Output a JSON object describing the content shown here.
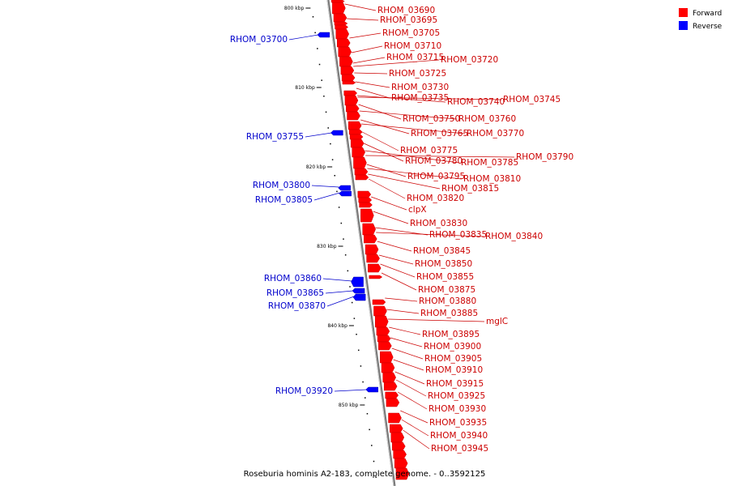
{
  "caption": "Roseburia hominis A2-183, complete genome. - 0..3592125",
  "legend": {
    "forward": {
      "label": "Forward",
      "color": "#ff0000"
    },
    "reverse": {
      "label": "Reverse",
      "color": "#0000ff"
    }
  },
  "ticks": [
    {
      "label": "800 kbp",
      "kbp": 800
    },
    {
      "label": "810 kbp",
      "kbp": 810
    },
    {
      "label": "820 kbp",
      "kbp": 820
    },
    {
      "label": "830 kbp",
      "kbp": 830
    },
    {
      "label": "840 kbp",
      "kbp": 840
    },
    {
      "label": "850 kbp",
      "kbp": 850
    }
  ],
  "forward_genes": [
    "RHOM_03690",
    "RHOM_03695",
    "RHOM_03705",
    "RHOM_03710",
    "RHOM_03715",
    "RHOM_03720",
    "RHOM_03725",
    "RHOM_03730",
    "RHOM_03735",
    "RHOM_03740",
    "RHOM_03745",
    "RHOM_03750",
    "RHOM_03760",
    "RHOM_03765",
    "RHOM_03770",
    "RHOM_03775",
    "RHOM_03780",
    "RHOM_03785",
    "RHOM_03790",
    "RHOM_03795",
    "RHOM_03810",
    "RHOM_03815",
    "RHOM_03820",
    "clpX",
    "RHOM_03830",
    "RHOM_03835",
    "RHOM_03840",
    "RHOM_03845",
    "RHOM_03850",
    "RHOM_03855",
    "RHOM_03875",
    "RHOM_03880",
    "RHOM_03885",
    "mglC",
    "RHOM_03895",
    "RHOM_03900",
    "RHOM_03905",
    "RHOM_03910",
    "RHOM_03915",
    "RHOM_03925",
    "RHOM_03930",
    "RHOM_03935",
    "RHOM_03940",
    "RHOM_03945"
  ],
  "reverse_genes": [
    "RHOM_03700",
    "RHOM_03755",
    "RHOM_03800",
    "RHOM_03805",
    "RHOM_03860",
    "RHOM_03865",
    "RHOM_03870",
    "RHOM_03920"
  ]
}
